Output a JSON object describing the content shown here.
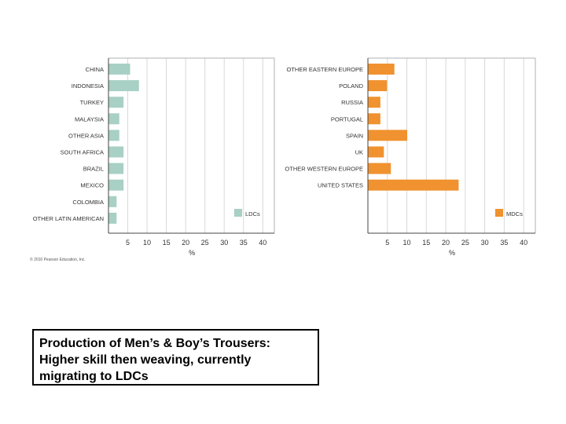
{
  "chart_data": [
    {
      "type": "bar",
      "orientation": "horizontal",
      "categories": [
        "CHINA",
        "INDONESIA",
        "TURKEY",
        "MALAYSIA",
        "OTHER ASIA",
        "SOUTH AFRICA",
        "BRAZIL",
        "MEXICO",
        "COLOMBIA",
        "OTHER LATIN AMERICAN"
      ],
      "values": [
        5.5,
        7.8,
        3.8,
        2.7,
        2.7,
        3.8,
        3.8,
        3.8,
        2.0,
        2.0
      ],
      "xticks": [
        5,
        10,
        15,
        20,
        25,
        30,
        35,
        40
      ],
      "xlim": [
        0,
        43
      ],
      "xlabel": "%",
      "legend": "LDCs",
      "color": "#a8d0c5",
      "grid": true
    },
    {
      "type": "bar",
      "orientation": "horizontal",
      "categories": [
        "OTHER EASTERN EUROPE",
        "POLAND",
        "RUSSIA",
        "PORTUGAL",
        "SPAIN",
        "UK",
        "OTHER WESTERN EUROPE",
        "UNITED STATES"
      ],
      "values": [
        6.7,
        4.8,
        3.1,
        3.1,
        10.0,
        4.0,
        5.8,
        23.2
      ],
      "xticks": [
        5,
        10,
        15,
        20,
        25,
        30,
        35,
        40
      ],
      "xlim": [
        0,
        43
      ],
      "xlabel": "%",
      "legend": "MDCs",
      "color": "#f0922f",
      "grid": true
    }
  ],
  "copyright": "© 2010 Pearson Education, Inc.",
  "caption": {
    "line1": "Production of Men’s & Boy’s Trousers:",
    "line2": "Higher skill then weaving, currently",
    "line3": "migrating to LDCs"
  }
}
